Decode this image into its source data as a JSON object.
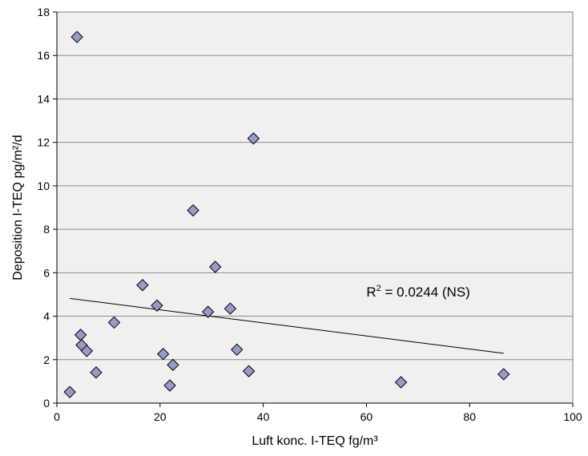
{
  "chart_data": {
    "type": "scatter",
    "title": "",
    "xlabel": "Luft konc.  I-TEQ fg/m³",
    "ylabel": "Deposition I-TEQ  pg/m²/d",
    "xlim": [
      0,
      100
    ],
    "ylim": [
      0,
      18
    ],
    "xticks": [
      0,
      20,
      40,
      60,
      80,
      100
    ],
    "yticks": [
      0,
      2,
      4,
      6,
      8,
      10,
      12,
      14,
      16,
      18
    ],
    "grid": "horizontal",
    "plot_background": "#F0F0F0",
    "marker_color": "#9999CC",
    "marker_shape": "diamond",
    "points": [
      {
        "x": 3.9,
        "y": 16.85
      },
      {
        "x": 38.1,
        "y": 12.18
      },
      {
        "x": 26.4,
        "y": 8.87
      },
      {
        "x": 30.7,
        "y": 6.27
      },
      {
        "x": 16.6,
        "y": 5.43
      },
      {
        "x": 19.4,
        "y": 4.49
      },
      {
        "x": 33.6,
        "y": 4.35
      },
      {
        "x": 29.3,
        "y": 4.2
      },
      {
        "x": 11.1,
        "y": 3.71
      },
      {
        "x": 4.6,
        "y": 3.14
      },
      {
        "x": 4.8,
        "y": 2.67
      },
      {
        "x": 5.8,
        "y": 2.4
      },
      {
        "x": 34.9,
        "y": 2.46
      },
      {
        "x": 20.6,
        "y": 2.26
      },
      {
        "x": 22.5,
        "y": 1.76
      },
      {
        "x": 37.2,
        "y": 1.47
      },
      {
        "x": 7.6,
        "y": 1.41
      },
      {
        "x": 86.6,
        "y": 1.33
      },
      {
        "x": 66.7,
        "y": 0.96
      },
      {
        "x": 21.9,
        "y": 0.81
      },
      {
        "x": 2.5,
        "y": 0.51
      }
    ],
    "trendline": {
      "x": [
        2.5,
        86.6
      ],
      "y": [
        4.82,
        2.29
      ]
    },
    "annotation": {
      "base": "R",
      "superscript": "2",
      "rest": " = 0.0244 (NS)",
      "x": 60,
      "y": 4.9
    }
  }
}
